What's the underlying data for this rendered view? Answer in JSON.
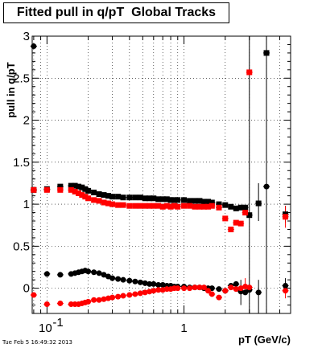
{
  "title": "Fitted pull in q/pT  Global Tracks",
  "timestamp": "Tue Feb  5 16:49:32 2013",
  "chart_data": {
    "type": "scatter",
    "title": "Fitted pull in q/pT  Global Tracks",
    "xlabel": "pT (GeV/c)",
    "ylabel": "pull in q/pT",
    "x_scale": "log",
    "xlim": [
      0.078,
      6.0
    ],
    "ylim": [
      -0.3,
      3.0
    ],
    "grid": true,
    "x_tick_labels": [
      {
        "value": 0.1,
        "base": "10",
        "exp": "-1"
      },
      {
        "value": 1,
        "base": "1",
        "exp": ""
      }
    ],
    "y_ticks": [
      0,
      0.5,
      1,
      1.5,
      2,
      2.5,
      3
    ],
    "colors": {
      "black": "#000000",
      "red": "#ff0000"
    },
    "series": [
      {
        "color": "black",
        "marker": "square",
        "x": [
          0.08,
          0.1,
          0.125,
          0.15,
          0.16,
          0.17,
          0.18,
          0.19,
          0.2,
          0.22,
          0.24,
          0.26,
          0.28,
          0.3,
          0.33,
          0.36,
          0.4,
          0.44,
          0.48,
          0.52,
          0.56,
          0.6,
          0.65,
          0.7,
          0.75,
          0.8,
          0.85,
          0.9,
          1.0,
          1.1,
          1.2,
          1.3,
          1.4,
          1.5,
          1.6,
          1.8,
          2.0,
          2.2,
          2.4,
          2.6,
          2.8,
          3.0,
          3.5,
          4.0,
          5.5
        ],
        "y": [
          1.17,
          1.18,
          1.21,
          1.22,
          1.22,
          1.21,
          1.2,
          1.18,
          1.16,
          1.14,
          1.12,
          1.11,
          1.1,
          1.09,
          1.09,
          1.08,
          1.08,
          1.08,
          1.08,
          1.07,
          1.07,
          1.07,
          1.06,
          1.06,
          1.06,
          1.05,
          1.05,
          1.05,
          1.05,
          1.04,
          1.04,
          1.04,
          1.03,
          1.03,
          1.02,
          1.0,
          0.99,
          0.97,
          0.95,
          0.96,
          0.96,
          0.87,
          1.01,
          2.8,
          0.88
        ]
      },
      {
        "color": "red",
        "marker": "square",
        "x": [
          0.08,
          0.1,
          0.125,
          0.15,
          0.16,
          0.17,
          0.18,
          0.19,
          0.2,
          0.22,
          0.24,
          0.26,
          0.28,
          0.3,
          0.33,
          0.36,
          0.4,
          0.44,
          0.48,
          0.52,
          0.56,
          0.6,
          0.65,
          0.7,
          0.75,
          0.8,
          0.85,
          0.9,
          1.0,
          1.1,
          1.2,
          1.3,
          1.4,
          1.5,
          1.6,
          1.8,
          2.0,
          2.2,
          2.4,
          2.6,
          2.8,
          3.0,
          5.5
        ],
        "y": [
          1.17,
          1.17,
          1.17,
          1.17,
          1.15,
          1.13,
          1.11,
          1.09,
          1.07,
          1.05,
          1.04,
          1.02,
          1.01,
          1.0,
          0.99,
          0.99,
          0.98,
          0.98,
          0.98,
          0.98,
          0.98,
          0.98,
          0.98,
          0.97,
          0.98,
          0.97,
          0.98,
          0.97,
          0.98,
          0.98,
          0.97,
          0.97,
          0.97,
          0.97,
          0.98,
          0.96,
          0.83,
          0.7,
          0.78,
          0.77,
          0.9,
          2.57,
          0.85
        ]
      },
      {
        "color": "black",
        "marker": "circle",
        "x": [
          0.08,
          0.1,
          0.125,
          0.15,
          0.16,
          0.17,
          0.18,
          0.19,
          0.2,
          0.22,
          0.24,
          0.26,
          0.28,
          0.3,
          0.33,
          0.36,
          0.4,
          0.44,
          0.48,
          0.52,
          0.56,
          0.6,
          0.65,
          0.7,
          0.75,
          0.8,
          0.85,
          0.9,
          1.0,
          1.1,
          1.2,
          1.3,
          1.4,
          1.5,
          1.6,
          1.8,
          2.0,
          2.2,
          2.4,
          2.6,
          2.8,
          3.0,
          3.5,
          4.0,
          5.5
        ],
        "y": [
          2.88,
          0.17,
          0.16,
          0.17,
          0.18,
          0.19,
          0.2,
          0.21,
          0.2,
          0.19,
          0.18,
          0.16,
          0.14,
          0.12,
          0.11,
          0.1,
          0.09,
          0.08,
          0.07,
          0.06,
          0.05,
          0.05,
          0.04,
          0.04,
          0.03,
          0.03,
          0.02,
          0.02,
          0.02,
          0.01,
          0.01,
          0.01,
          0.0,
          0.0,
          0.0,
          -0.01,
          -0.03,
          0.03,
          0.05,
          -0.04,
          -0.05,
          -0.02,
          -0.05,
          1.21,
          0.03
        ]
      },
      {
        "color": "red",
        "marker": "circle",
        "x": [
          0.08,
          0.1,
          0.125,
          0.15,
          0.16,
          0.17,
          0.18,
          0.19,
          0.2,
          0.22,
          0.24,
          0.26,
          0.28,
          0.3,
          0.33,
          0.36,
          0.4,
          0.44,
          0.48,
          0.52,
          0.56,
          0.6,
          0.65,
          0.7,
          0.75,
          0.8,
          0.85,
          0.9,
          1.0,
          1.1,
          1.2,
          1.3,
          1.4,
          1.5,
          1.6,
          1.8,
          2.0,
          2.2,
          2.4,
          2.6,
          2.8,
          3.0,
          5.5
        ],
        "y": [
          -0.08,
          -0.19,
          -0.18,
          -0.19,
          -0.19,
          -0.19,
          -0.18,
          -0.17,
          -0.16,
          -0.14,
          -0.14,
          -0.13,
          -0.12,
          -0.11,
          -0.1,
          -0.09,
          -0.08,
          -0.07,
          -0.06,
          -0.05,
          -0.04,
          -0.03,
          -0.02,
          -0.02,
          -0.01,
          -0.01,
          0.0,
          0.0,
          0.0,
          0.0,
          0.01,
          0.01,
          0.01,
          -0.03,
          -0.07,
          -0.11,
          -0.03,
          0.01,
          -0.01,
          0.0,
          0.02,
          0.01,
          -0.03
        ]
      }
    ],
    "error_bars": [
      {
        "series": 0,
        "x": 3.5,
        "low": 0.8,
        "high": 1.25
      },
      {
        "series": 0,
        "x": 5.5,
        "low": 0.78,
        "high": 0.98
      },
      {
        "series": 1,
        "x": 5.5,
        "low": 0.72,
        "high": 0.98
      },
      {
        "series": 2,
        "x": 3.0,
        "low": -0.3,
        "high": 3.0
      },
      {
        "series": 2,
        "x": 3.5,
        "low": -0.3,
        "high": 0.1
      },
      {
        "series": 2,
        "x": 4.0,
        "low": -0.3,
        "high": 3.0
      },
      {
        "series": 2,
        "x": 2.6,
        "low": -0.2,
        "high": 0.1
      },
      {
        "series": 2,
        "x": 5.5,
        "low": -0.06,
        "high": 0.12
      },
      {
        "series": 3,
        "x": 5.5,
        "low": -0.12,
        "high": 0.06
      },
      {
        "series": 3,
        "x": 2.8,
        "low": -0.08,
        "high": 0.12
      }
    ]
  }
}
